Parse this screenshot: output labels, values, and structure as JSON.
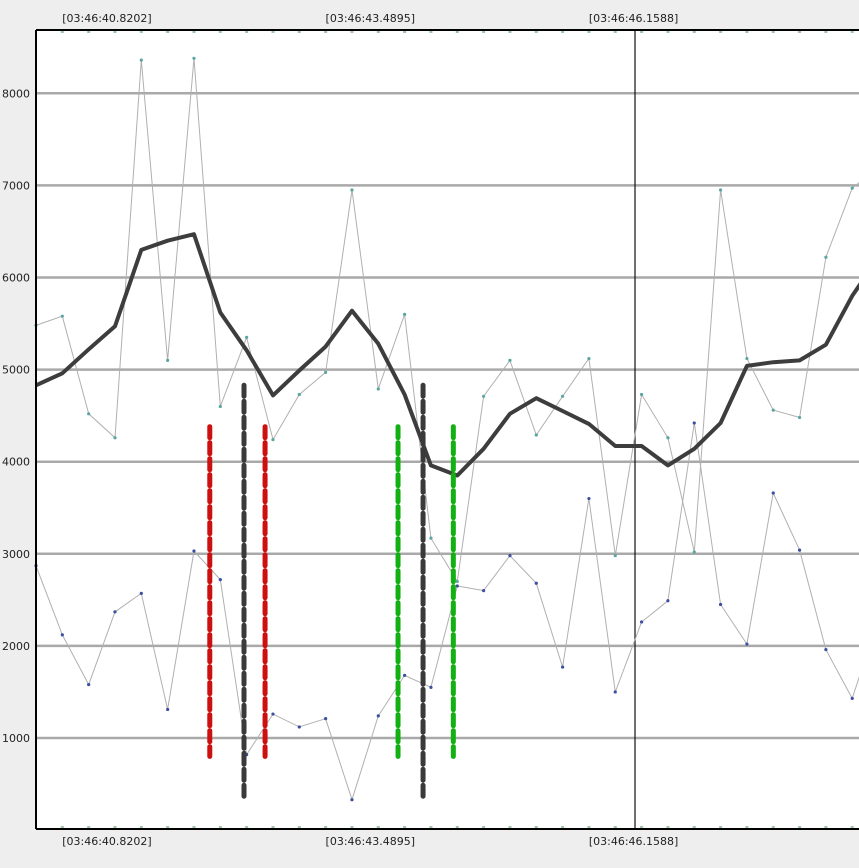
{
  "chart_data": {
    "type": "line",
    "title": "",
    "xlabel": "",
    "ylabel": "",
    "ylim": [
      0,
      8700
    ],
    "yticks": [
      1000,
      2000,
      3000,
      4000,
      5000,
      6000,
      7000,
      8000
    ],
    "ytick_labels": [
      "1000",
      "2000",
      "3000",
      "4000",
      "5000",
      "6000",
      "7000",
      "8000"
    ],
    "xticks_top": [
      "[03:46:40.8202]",
      "[03:46:43.4895]",
      "[03:46:46.1588]"
    ],
    "xticks_bottom": [
      "[03:46:40.8202]",
      "[03:46:43.4895]",
      "[03:46:46.1588]"
    ],
    "grid": "horizontal",
    "cursor_index": 22.75,
    "series": [
      {
        "name": "",
        "style": "thick-dark",
        "color": "#3d3d3d",
        "x": [
          0,
          1,
          2,
          3,
          4,
          5,
          6,
          7,
          8,
          9,
          10,
          11,
          12,
          13,
          14,
          15,
          16,
          17,
          18,
          19,
          20,
          21,
          22,
          23,
          24,
          25,
          26,
          27,
          28,
          29,
          30,
          31,
          32
        ],
        "values": [
          4830,
          4960,
          5220,
          5470,
          6300,
          6400,
          6470,
          5620,
          5210,
          4720,
          4990,
          5250,
          5640,
          5280,
          4730,
          3960,
          3850,
          4140,
          4520,
          4690,
          4550,
          4410,
          4170,
          4170,
          3960,
          4140,
          4420,
          5040,
          5080,
          5100,
          5270,
          5800,
          6220
        ]
      },
      {
        "name": "",
        "style": "thin-upper",
        "color": "#b0b0b0",
        "x": [
          0,
          1,
          2,
          3,
          4,
          5,
          6,
          7,
          8,
          9,
          10,
          11,
          12,
          13,
          14,
          15,
          16,
          17,
          18,
          19,
          20,
          21,
          22,
          23,
          24,
          25,
          26,
          27,
          28,
          29,
          30,
          31,
          32
        ],
        "values": [
          5480,
          5580,
          4520,
          4260,
          8360,
          5100,
          8380,
          4600,
          5350,
          4240,
          4730,
          4970,
          6950,
          4790,
          5600,
          3170,
          2700,
          4710,
          5100,
          4290,
          4710,
          5120,
          2980,
          4730,
          4260,
          3020,
          6950,
          5120,
          4560,
          4480,
          6220,
          6970,
          7200
        ]
      },
      {
        "name": "",
        "style": "thin-lower",
        "color": "#b0b0b0",
        "x": [
          0,
          1,
          2,
          3,
          4,
          5,
          6,
          7,
          8,
          9,
          10,
          11,
          12,
          13,
          14,
          15,
          16,
          17,
          18,
          19,
          20,
          21,
          22,
          23,
          24,
          25,
          26,
          27,
          28,
          29,
          30,
          31,
          32
        ],
        "values": [
          2870,
          2120,
          1580,
          2370,
          2570,
          1310,
          3030,
          2720,
          820,
          1260,
          1120,
          1210,
          330,
          1240,
          1680,
          1550,
          2650,
          2600,
          2980,
          2680,
          1770,
          3600,
          1500,
          2260,
          2490,
          4420,
          2450,
          2020,
          3660,
          3040,
          1960,
          1430,
          2300
        ]
      }
    ],
    "annotations": [
      {
        "type": "dashed-vline",
        "color": "#cc1010",
        "x": 6.6,
        "y_from": 800,
        "y_to": 4380
      },
      {
        "type": "dashed-vline",
        "color": "#3a3a3a",
        "x": 7.9,
        "y_from": 330,
        "y_to": 4830
      },
      {
        "type": "dashed-vline",
        "color": "#cc1010",
        "x": 8.7,
        "y_from": 800,
        "y_to": 4380
      },
      {
        "type": "dashed-vline",
        "color": "#12b012",
        "x": 13.75,
        "y_from": 800,
        "y_to": 4380
      },
      {
        "type": "dashed-vline",
        "color": "#3a3a3a",
        "x": 14.7,
        "y_from": 330,
        "y_to": 4830
      },
      {
        "type": "dashed-vline",
        "color": "#12b012",
        "x": 15.85,
        "y_from": 800,
        "y_to": 4380
      }
    ]
  }
}
